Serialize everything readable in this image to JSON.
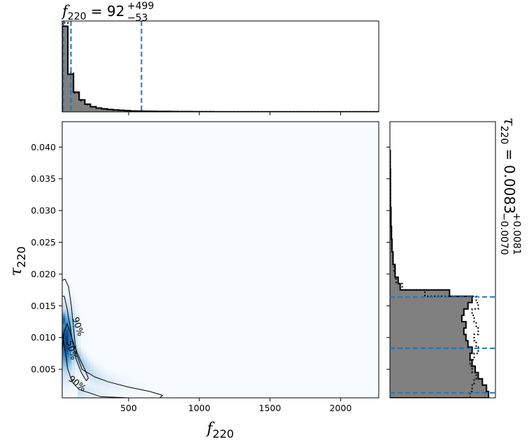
{
  "chart_data": [
    {
      "type": "histogram",
      "panel": "top-marginal",
      "variable": "f_220",
      "title": {
        "prefix": "f",
        "sub": "220",
        "eq": " = 92",
        "sup": "+499",
        "low": "−53"
      },
      "xlim": [
        30,
        2270
      ],
      "bins_x": [
        30,
        70,
        110,
        150,
        190,
        230,
        270,
        310,
        350,
        390,
        430,
        470,
        510,
        550,
        600,
        650,
        700,
        750,
        800,
        850,
        900,
        950,
        1000,
        1050,
        1100,
        2270
      ],
      "filled_values": [
        100,
        44,
        23,
        14,
        9,
        6,
        4.5,
        3.5,
        2.8,
        2.2,
        1.8,
        1.4,
        1.1,
        0.9,
        0.7,
        0.6,
        0.5,
        0.45,
        0.4,
        0.35,
        0.3,
        0.25,
        0.2,
        0.15,
        0.05
      ],
      "dotted_values": [
        104,
        46,
        22,
        13,
        8.5,
        6,
        4.5,
        3.5,
        2.8,
        2.2,
        1.8,
        1.4,
        1.1,
        0.9,
        0.7,
        0.6,
        0.5,
        0.45,
        0.4,
        0.35,
        0.3,
        0.25,
        0.2,
        0.15,
        0.05
      ],
      "quantile_lines": [
        39,
        92,
        591
      ],
      "quantile_color": "#1f77b4",
      "fill_color": "#808080"
    },
    {
      "type": "heatmap",
      "panel": "joint-density",
      "xlabel": {
        "main": "f",
        "sub": "220"
      },
      "ylabel": {
        "main": "τ",
        "sub": "220"
      },
      "xlim": [
        30,
        2270
      ],
      "ylim": [
        0.0005,
        0.044
      ],
      "xticks": [
        500,
        1000,
        1500,
        2000
      ],
      "yticks": [
        0.005,
        0.01,
        0.015,
        0.02,
        0.025,
        0.03,
        0.035,
        0.04
      ],
      "ytick_labels": [
        "0.005",
        "0.010",
        "0.015",
        "0.020",
        "0.025",
        "0.030",
        "0.035",
        "0.040"
      ],
      "colormap": "Blues",
      "density_peak": {
        "f": 60,
        "tau": 0.0095
      },
      "contours": [
        {
          "label": "50%",
          "label_pos": {
            "f": 95,
            "tau": 0.008
          },
          "label_angle": 75,
          "points": [
            [
              30,
              0.0165
            ],
            [
              45,
              0.0165
            ],
            [
              65,
              0.0145
            ],
            [
              85,
              0.0118
            ],
            [
              105,
              0.009
            ],
            [
              130,
              0.0065
            ],
            [
              165,
              0.0045
            ],
            [
              200,
              0.0032
            ],
            [
              215,
              0.0036
            ],
            [
              190,
              0.005
            ],
            [
              155,
              0.0066
            ],
            [
              120,
              0.0085
            ],
            [
              90,
              0.0105
            ],
            [
              65,
              0.0122
            ],
            [
              45,
              0.011
            ],
            [
              30,
              0.008
            ]
          ]
        },
        {
          "label": "90%",
          "label_pos": {
            "f": 140,
            "tau": 0.0117
          },
          "label_angle": 72,
          "points": [
            [
              30,
              0.019
            ],
            [
              50,
              0.0192
            ],
            [
              75,
              0.018
            ],
            [
              95,
              0.015
            ],
            [
              110,
              0.0115
            ],
            [
              130,
              0.0075
            ],
            [
              170,
              0.005
            ],
            [
              260,
              0.0038
            ],
            [
              360,
              0.003
            ],
            [
              500,
              0.0022
            ],
            [
              650,
              0.0015
            ],
            [
              740,
              0.0009
            ],
            [
              720,
              0.0005
            ],
            [
              500,
              0.0005
            ],
            [
              300,
              0.0007
            ],
            [
              220,
              0.0013
            ],
            [
              150,
              0.0018
            ],
            [
              100,
              0.003
            ],
            [
              70,
              0.005
            ],
            [
              50,
              0.008
            ],
            [
              30,
              0.011
            ]
          ]
        },
        {
          "label": "90%",
          "label_pos": {
            "f": 135,
            "tau": 0.0027
          },
          "label_angle": 38,
          "points": []
        }
      ]
    },
    {
      "type": "histogram",
      "panel": "right-marginal",
      "orientation": "horizontal",
      "variable": "tau_220",
      "title": {
        "prefix": "τ",
        "sub": "220",
        "eq": " = 0.0083",
        "sup": "+0.0081",
        "low": "−0.0070"
      },
      "ylim": [
        0.0005,
        0.044
      ],
      "bins_y": [
        0.0005,
        0.0015,
        0.0025,
        0.0035,
        0.0045,
        0.0055,
        0.0065,
        0.0075,
        0.0085,
        0.0095,
        0.0105,
        0.0115,
        0.0125,
        0.0135,
        0.0145,
        0.0155,
        0.0165,
        0.0175,
        0.0185,
        0.0195,
        0.0205,
        0.0215,
        0.0225,
        0.0235,
        0.0245,
        0.0255,
        0.0265,
        0.0275,
        0.0285,
        0.0295,
        0.0305,
        0.0315,
        0.0335,
        0.0365,
        0.0395
      ],
      "filled_values": [
        96,
        94,
        90,
        86,
        83,
        80,
        78,
        80,
        76,
        74,
        72,
        74,
        70,
        72,
        76,
        80,
        58,
        10,
        8,
        5,
        5,
        3,
        3,
        2,
        2,
        1.5,
        1.5,
        1,
        1,
        1,
        0.5,
        0.5,
        0.5,
        0.3
      ],
      "dotted_values": [
        78,
        80,
        82,
        84,
        80,
        78,
        82,
        86,
        84,
        82,
        86,
        84,
        82,
        80,
        86,
        84,
        34,
        12,
        6,
        5,
        4,
        3,
        3,
        2,
        2,
        1.5,
        1.5,
        1,
        1,
        1,
        0.5,
        0.5,
        0.5,
        0.3
      ],
      "quantile_lines": [
        0.0013,
        0.0083,
        0.0164
      ],
      "quantile_color": "#1f77b4",
      "fill_color": "#808080"
    }
  ]
}
